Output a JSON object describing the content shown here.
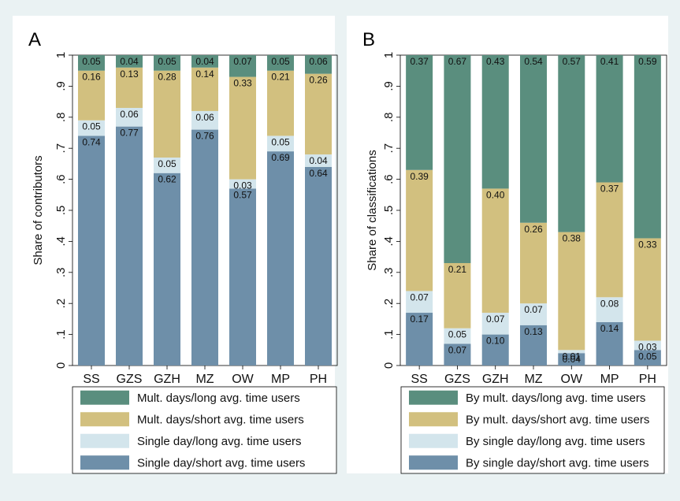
{
  "colors": {
    "background": "#eaf2f3",
    "mult_long": "#5a8e7e",
    "mult_short": "#d2c07f",
    "single_long": "#d3e5ec",
    "single_short": "#6e8fa9"
  },
  "chart_data": [
    {
      "panel_label": "A",
      "type": "bar",
      "stacked": true,
      "ylabel": "Share of contributors",
      "ylim": [
        0,
        1
      ],
      "yticks": [
        "0",
        ".1",
        ".2",
        ".3",
        ".4",
        ".5",
        ".6",
        ".7",
        ".8",
        ".9",
        "1"
      ],
      "categories": [
        "SS",
        "GZS",
        "GZH",
        "MZ",
        "OW",
        "MP",
        "PH"
      ],
      "legend_position": "bottom",
      "series": [
        {
          "name": "Single day/short avg. time users",
          "color": "#6e8fa9",
          "values": [
            0.74,
            0.77,
            0.62,
            0.76,
            0.57,
            0.69,
            0.64
          ],
          "labels": [
            "0.74",
            "0.77",
            "0.62",
            "0.76",
            "0.57",
            "0.69",
            "0.64"
          ]
        },
        {
          "name": "Single day/long avg. time users",
          "color": "#d3e5ec",
          "values": [
            0.05,
            0.06,
            0.05,
            0.06,
            0.03,
            0.05,
            0.04
          ],
          "labels": [
            "0.05",
            "0.06",
            "0.05",
            "0.06",
            "0.03",
            "0.05",
            "0.04"
          ]
        },
        {
          "name": "Mult. days/short avg. time users",
          "color": "#d2c07f",
          "values": [
            0.16,
            0.13,
            0.28,
            0.14,
            0.33,
            0.21,
            0.26
          ],
          "labels": [
            "0.16",
            "0.13",
            "0.28",
            "0.14",
            "0.33",
            "0.21",
            "0.26"
          ]
        },
        {
          "name": "Mult. days/long avg. time users",
          "color": "#5a8e7e",
          "values": [
            0.05,
            0.04,
            0.05,
            0.04,
            0.07,
            0.05,
            0.06
          ],
          "labels": [
            "0.05",
            "0.04",
            "0.05",
            "0.04",
            "0.07",
            "0.05",
            "0.06"
          ]
        }
      ]
    },
    {
      "panel_label": "B",
      "type": "bar",
      "stacked": true,
      "ylabel": "Share of classifications",
      "ylim": [
        0,
        1
      ],
      "yticks": [
        "0",
        ".1",
        ".2",
        ".3",
        ".4",
        ".5",
        ".6",
        ".7",
        ".8",
        ".9",
        "1"
      ],
      "categories": [
        "SS",
        "GZS",
        "GZH",
        "MZ",
        "OW",
        "MP",
        "PH"
      ],
      "legend_position": "bottom",
      "series": [
        {
          "name": "By single day/short avg. time users",
          "color": "#6e8fa9",
          "values": [
            0.17,
            0.07,
            0.1,
            0.13,
            0.04,
            0.14,
            0.05
          ],
          "labels": [
            "0.17",
            "0.07",
            "0.10",
            "0.13",
            "0.04",
            "0.14",
            "0.05"
          ]
        },
        {
          "name": "By single day/long avg. time users",
          "color": "#d3e5ec",
          "values": [
            0.07,
            0.05,
            0.07,
            0.07,
            0.01,
            0.08,
            0.03
          ],
          "labels": [
            "0.07",
            "0.05",
            "0.07",
            "0.07",
            "0.01",
            "0.08",
            "0.03"
          ]
        },
        {
          "name": "By mult. days/short avg. time users",
          "color": "#d2c07f",
          "values": [
            0.39,
            0.21,
            0.4,
            0.26,
            0.38,
            0.37,
            0.33
          ],
          "labels": [
            "0.39",
            "0.21",
            "0.40",
            "0.26",
            "0.38",
            "0.37",
            "0.33"
          ]
        },
        {
          "name": "By mult. days/long avg. time users",
          "color": "#5a8e7e",
          "values": [
            0.37,
            0.67,
            0.43,
            0.54,
            0.57,
            0.41,
            0.59
          ],
          "labels": [
            "0.37",
            "0.67",
            "0.43",
            "0.54",
            "0.57",
            "0.41",
            "0.59"
          ]
        }
      ]
    }
  ]
}
